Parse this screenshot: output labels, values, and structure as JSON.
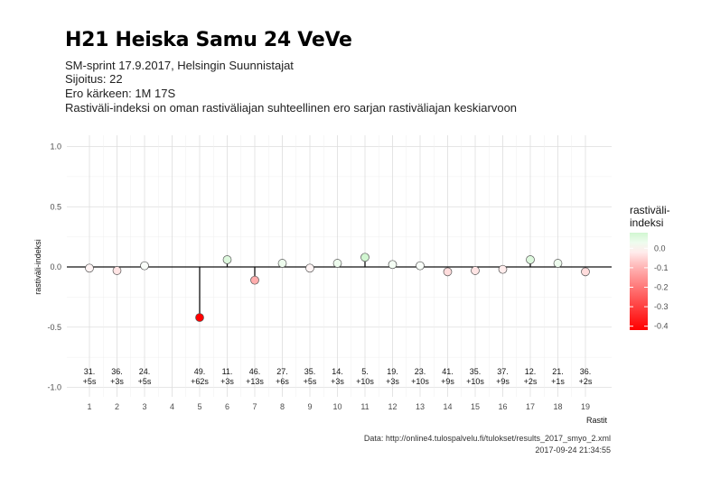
{
  "chart_data": {
    "type": "scatter",
    "title": "H21 Heiska Samu 24 VeVe",
    "subtitle_lines": [
      "SM-sprint 17.9.2017, Helsingin Suunnistajat",
      "Sijoitus: 22",
      "Ero kärkeen: 1M 17S",
      "Rastiväli-indeksi on oman rastiväliajan suhteellinen ero sarjan rastiväliajan keskiarvoon"
    ],
    "xlabel": "Rastit",
    "ylabel": "rastiväli-indeksi",
    "ylim": [
      -1.0,
      1.0
    ],
    "yticks": [
      "-1.0",
      "-0.5",
      "0.0",
      "0.5",
      "1.0"
    ],
    "x": [
      1,
      2,
      3,
      5,
      6,
      7,
      8,
      9,
      10,
      11,
      12,
      13,
      14,
      15,
      16,
      17,
      18,
      19
    ],
    "xticks": [
      "1",
      "2",
      "3",
      "4",
      "5",
      "6",
      "7",
      "8",
      "9",
      "10",
      "11",
      "12",
      "13",
      "14",
      "15",
      "16",
      "17",
      "18",
      "19"
    ],
    "values": [
      -0.01,
      -0.03,
      0.01,
      -0.42,
      0.06,
      -0.11,
      0.03,
      -0.01,
      0.03,
      0.08,
      0.02,
      0.01,
      -0.04,
      -0.03,
      -0.02,
      0.06,
      0.03,
      -0.04
    ],
    "rank_labels": [
      "31.",
      "36.",
      "24.",
      "49.",
      "11.",
      "46.",
      "27.",
      "35.",
      "14.",
      "5.",
      "19.",
      "23.",
      "41.",
      "35.",
      "37.",
      "12.",
      "21.",
      "36."
    ],
    "diff_labels": [
      "+5s",
      "+3s",
      "+5s",
      "+62s",
      "+3s",
      "+13s",
      "+6s",
      "+5s",
      "+3s",
      "+10s",
      "+3s",
      "+10s",
      "+9s",
      "+10s",
      "+9s",
      "+2s",
      "+1s",
      "+2s"
    ],
    "grid": true,
    "legend": {
      "placement": "right",
      "title_lines": [
        "rastiväli-",
        "indeksi"
      ],
      "ticks": [
        "0.0",
        "-0.1",
        "-0.2",
        "-0.3",
        "-0.4"
      ],
      "tick_values": [
        0.0,
        -0.1,
        -0.2,
        -0.3,
        -0.4
      ],
      "range": [
        -0.42,
        0.08
      ]
    },
    "colors": {
      "low": "#ff0000",
      "mid": "#ffffff",
      "high": "#00cc00"
    },
    "caption_lines": [
      "Data: http://online4.tulospalvelu.fi/tulokset/results_2017_smyo_2.xml",
      "2017-09-24 21:34:55"
    ]
  }
}
